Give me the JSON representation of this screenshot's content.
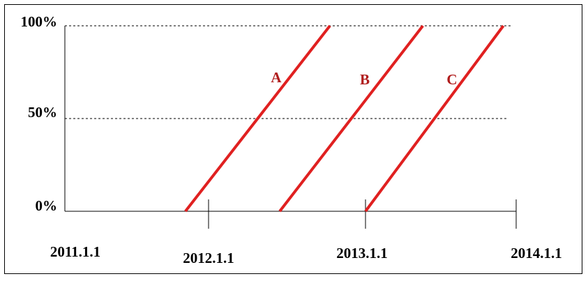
{
  "chart_data": {
    "type": "line",
    "x_axis": {
      "tick_labels": [
        "2011.1.1",
        "2012.1.1",
        "2013.1.1",
        "2014.1.1"
      ],
      "range": [
        "2011.1.1",
        "2014.1.1"
      ]
    },
    "y_axis": {
      "tick_labels": [
        "0%",
        "50%",
        "100%"
      ],
      "ylim": [
        0,
        100
      ],
      "gridlines": [
        50,
        100
      ],
      "grid_style": "dashed"
    },
    "series": [
      {
        "name": "A",
        "points": [
          {
            "x": "2011.11.8",
            "y": 0
          },
          {
            "x": "2012.10.10",
            "y": 100
          }
        ]
      },
      {
        "name": "B",
        "points": [
          {
            "x": "2012.6.15",
            "y": 0
          },
          {
            "x": "2013.5.20",
            "y": 100
          }
        ]
      },
      {
        "name": "C",
        "points": [
          {
            "x": "2013.1.1",
            "y": 0
          },
          {
            "x": "2013.12.1",
            "y": 100
          }
        ]
      }
    ],
    "line_color": "#e02020",
    "label_color": "#b01c1c"
  }
}
